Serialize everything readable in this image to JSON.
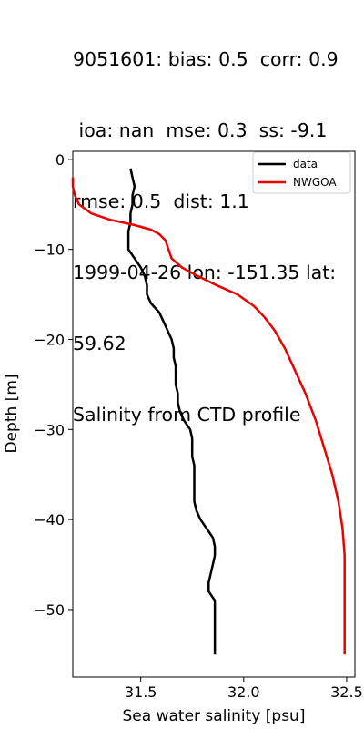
{
  "title_lines": [
    "9051601: bias: 0.5  corr: 0.9",
    " ioa: nan  mse: 0.3  ss: -9.1",
    "rmse: 0.5  dist: 1.1",
    "1999-04-26 lon: -151.35 lat:",
    "59.62",
    "Salinity from CTD profile"
  ],
  "chart_data": {
    "type": "line",
    "xlabel": "Sea water salinity [psu]",
    "ylabel": "Depth [m]",
    "xlim": [
      31.17,
      32.54
    ],
    "ylim": [
      -57.5,
      0.9
    ],
    "xticks": [
      31.5,
      32.0,
      32.5
    ],
    "xtick_labels": [
      "31.5",
      "32.0",
      "32.5"
    ],
    "yticks": [
      0,
      -10,
      -20,
      -30,
      -40,
      -50
    ],
    "ytick_labels": [
      "0",
      "−10",
      "−20",
      "−30",
      "−40",
      "−50"
    ],
    "grid": false,
    "legend_position": "top-right",
    "series": [
      {
        "name": "data",
        "color": "#000000",
        "points": [
          [
            31.45,
            -1
          ],
          [
            31.46,
            -2
          ],
          [
            31.47,
            -3
          ],
          [
            31.46,
            -4
          ],
          [
            31.46,
            -5
          ],
          [
            31.45,
            -6
          ],
          [
            31.45,
            -7
          ],
          [
            31.44,
            -8
          ],
          [
            31.44,
            -9
          ],
          [
            31.44,
            -10
          ],
          [
            31.47,
            -11
          ],
          [
            31.5,
            -12
          ],
          [
            31.52,
            -13
          ],
          [
            31.53,
            -14
          ],
          [
            31.53,
            -15
          ],
          [
            31.55,
            -16
          ],
          [
            31.59,
            -17
          ],
          [
            31.61,
            -18
          ],
          [
            31.63,
            -19
          ],
          [
            31.65,
            -20
          ],
          [
            31.66,
            -21
          ],
          [
            31.66,
            -22
          ],
          [
            31.67,
            -23
          ],
          [
            31.67,
            -24
          ],
          [
            31.67,
            -25
          ],
          [
            31.68,
            -26
          ],
          [
            31.68,
            -27
          ],
          [
            31.69,
            -28
          ],
          [
            31.71,
            -29
          ],
          [
            31.74,
            -30
          ],
          [
            31.75,
            -31
          ],
          [
            31.75,
            -32
          ],
          [
            31.75,
            -33
          ],
          [
            31.76,
            -34
          ],
          [
            31.76,
            -35
          ],
          [
            31.76,
            -36
          ],
          [
            31.76,
            -37
          ],
          [
            31.76,
            -38
          ],
          [
            31.77,
            -39
          ],
          [
            31.79,
            -40
          ],
          [
            31.82,
            -41
          ],
          [
            31.85,
            -42
          ],
          [
            31.86,
            -43
          ],
          [
            31.86,
            -44
          ],
          [
            31.85,
            -45
          ],
          [
            31.84,
            -46
          ],
          [
            31.83,
            -47
          ],
          [
            31.83,
            -48
          ],
          [
            31.86,
            -49
          ],
          [
            31.86,
            -50
          ],
          [
            31.86,
            -51
          ],
          [
            31.86,
            -52
          ],
          [
            31.86,
            -53
          ],
          [
            31.86,
            -54
          ],
          [
            31.86,
            -55
          ]
        ]
      },
      {
        "name": "NWGOA",
        "color": "#ee0000",
        "points": [
          [
            31.17,
            -2
          ],
          [
            31.17,
            -3
          ],
          [
            31.18,
            -4
          ],
          [
            31.2,
            -5
          ],
          [
            31.26,
            -6
          ],
          [
            31.35,
            -6.7
          ],
          [
            31.47,
            -7.3
          ],
          [
            31.55,
            -7.8
          ],
          [
            31.59,
            -8.3
          ],
          [
            31.62,
            -9
          ],
          [
            31.65,
            -11
          ],
          [
            31.7,
            -12
          ],
          [
            31.78,
            -13
          ],
          [
            31.87,
            -14
          ],
          [
            31.97,
            -15
          ],
          [
            32.05,
            -16.3
          ],
          [
            32.1,
            -17.5
          ],
          [
            32.15,
            -19
          ],
          [
            32.2,
            -21
          ],
          [
            32.25,
            -23.5
          ],
          [
            32.3,
            -26
          ],
          [
            32.35,
            -29
          ],
          [
            32.39,
            -32
          ],
          [
            32.43,
            -35
          ],
          [
            32.46,
            -38
          ],
          [
            32.48,
            -41
          ],
          [
            32.49,
            -44
          ],
          [
            32.49,
            -48
          ],
          [
            32.49,
            -52
          ],
          [
            32.49,
            -55
          ]
        ]
      }
    ]
  }
}
